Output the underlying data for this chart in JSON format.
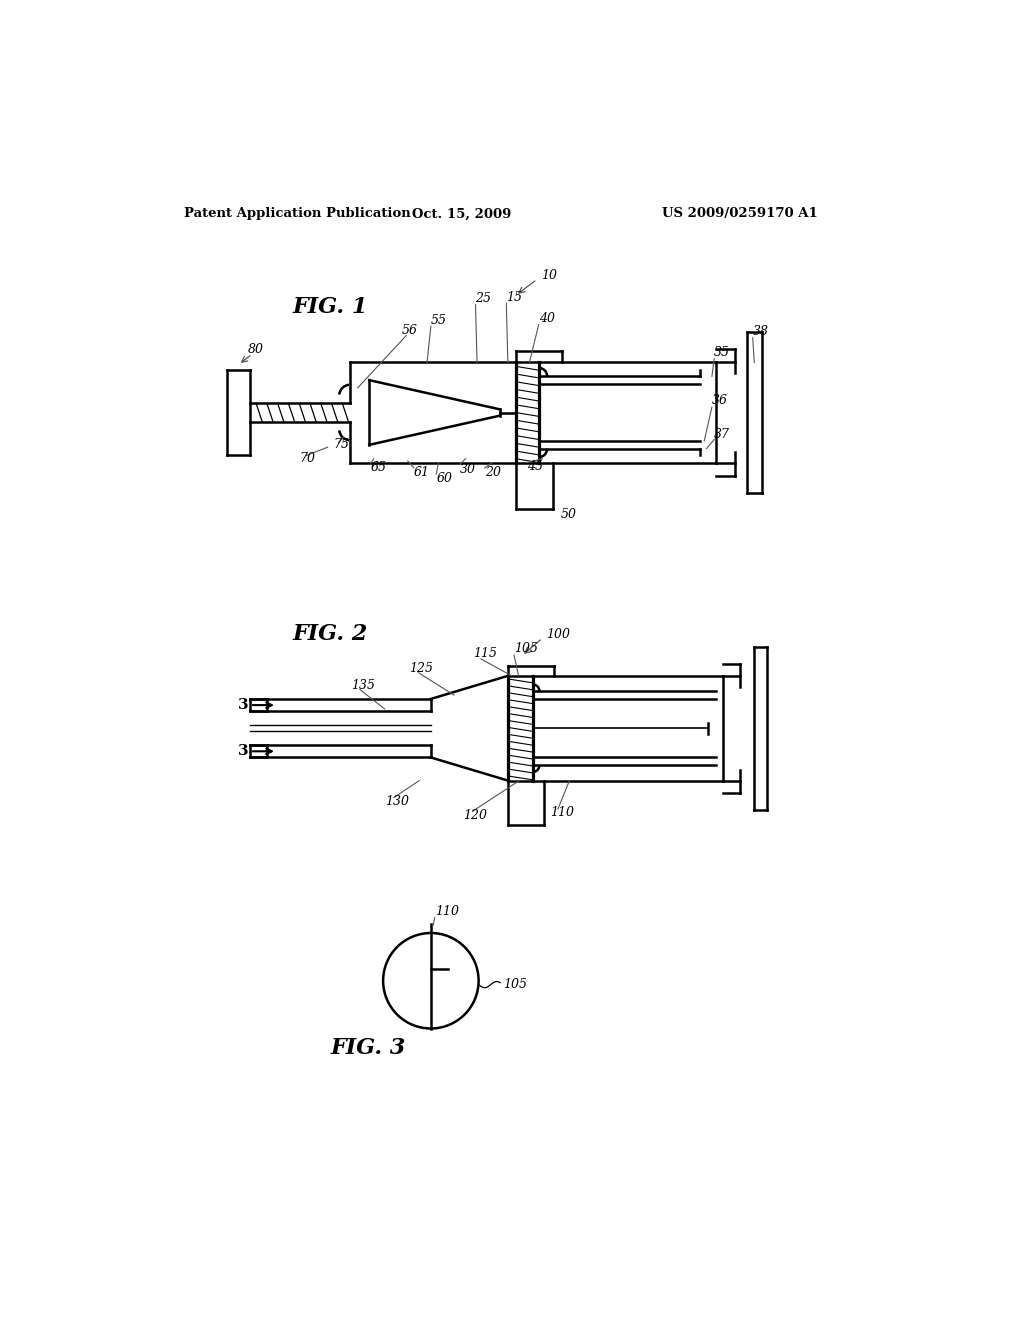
{
  "bg_color": "#ffffff",
  "line_color": "#000000",
  "header_left": "Patent Application Publication",
  "header_center": "Oct. 15, 2009",
  "header_right": "US 2009/0259170 A1",
  "fig1_label": "FIG. 1",
  "fig2_label": "FIG. 2",
  "fig3_label": "FIG. 3"
}
